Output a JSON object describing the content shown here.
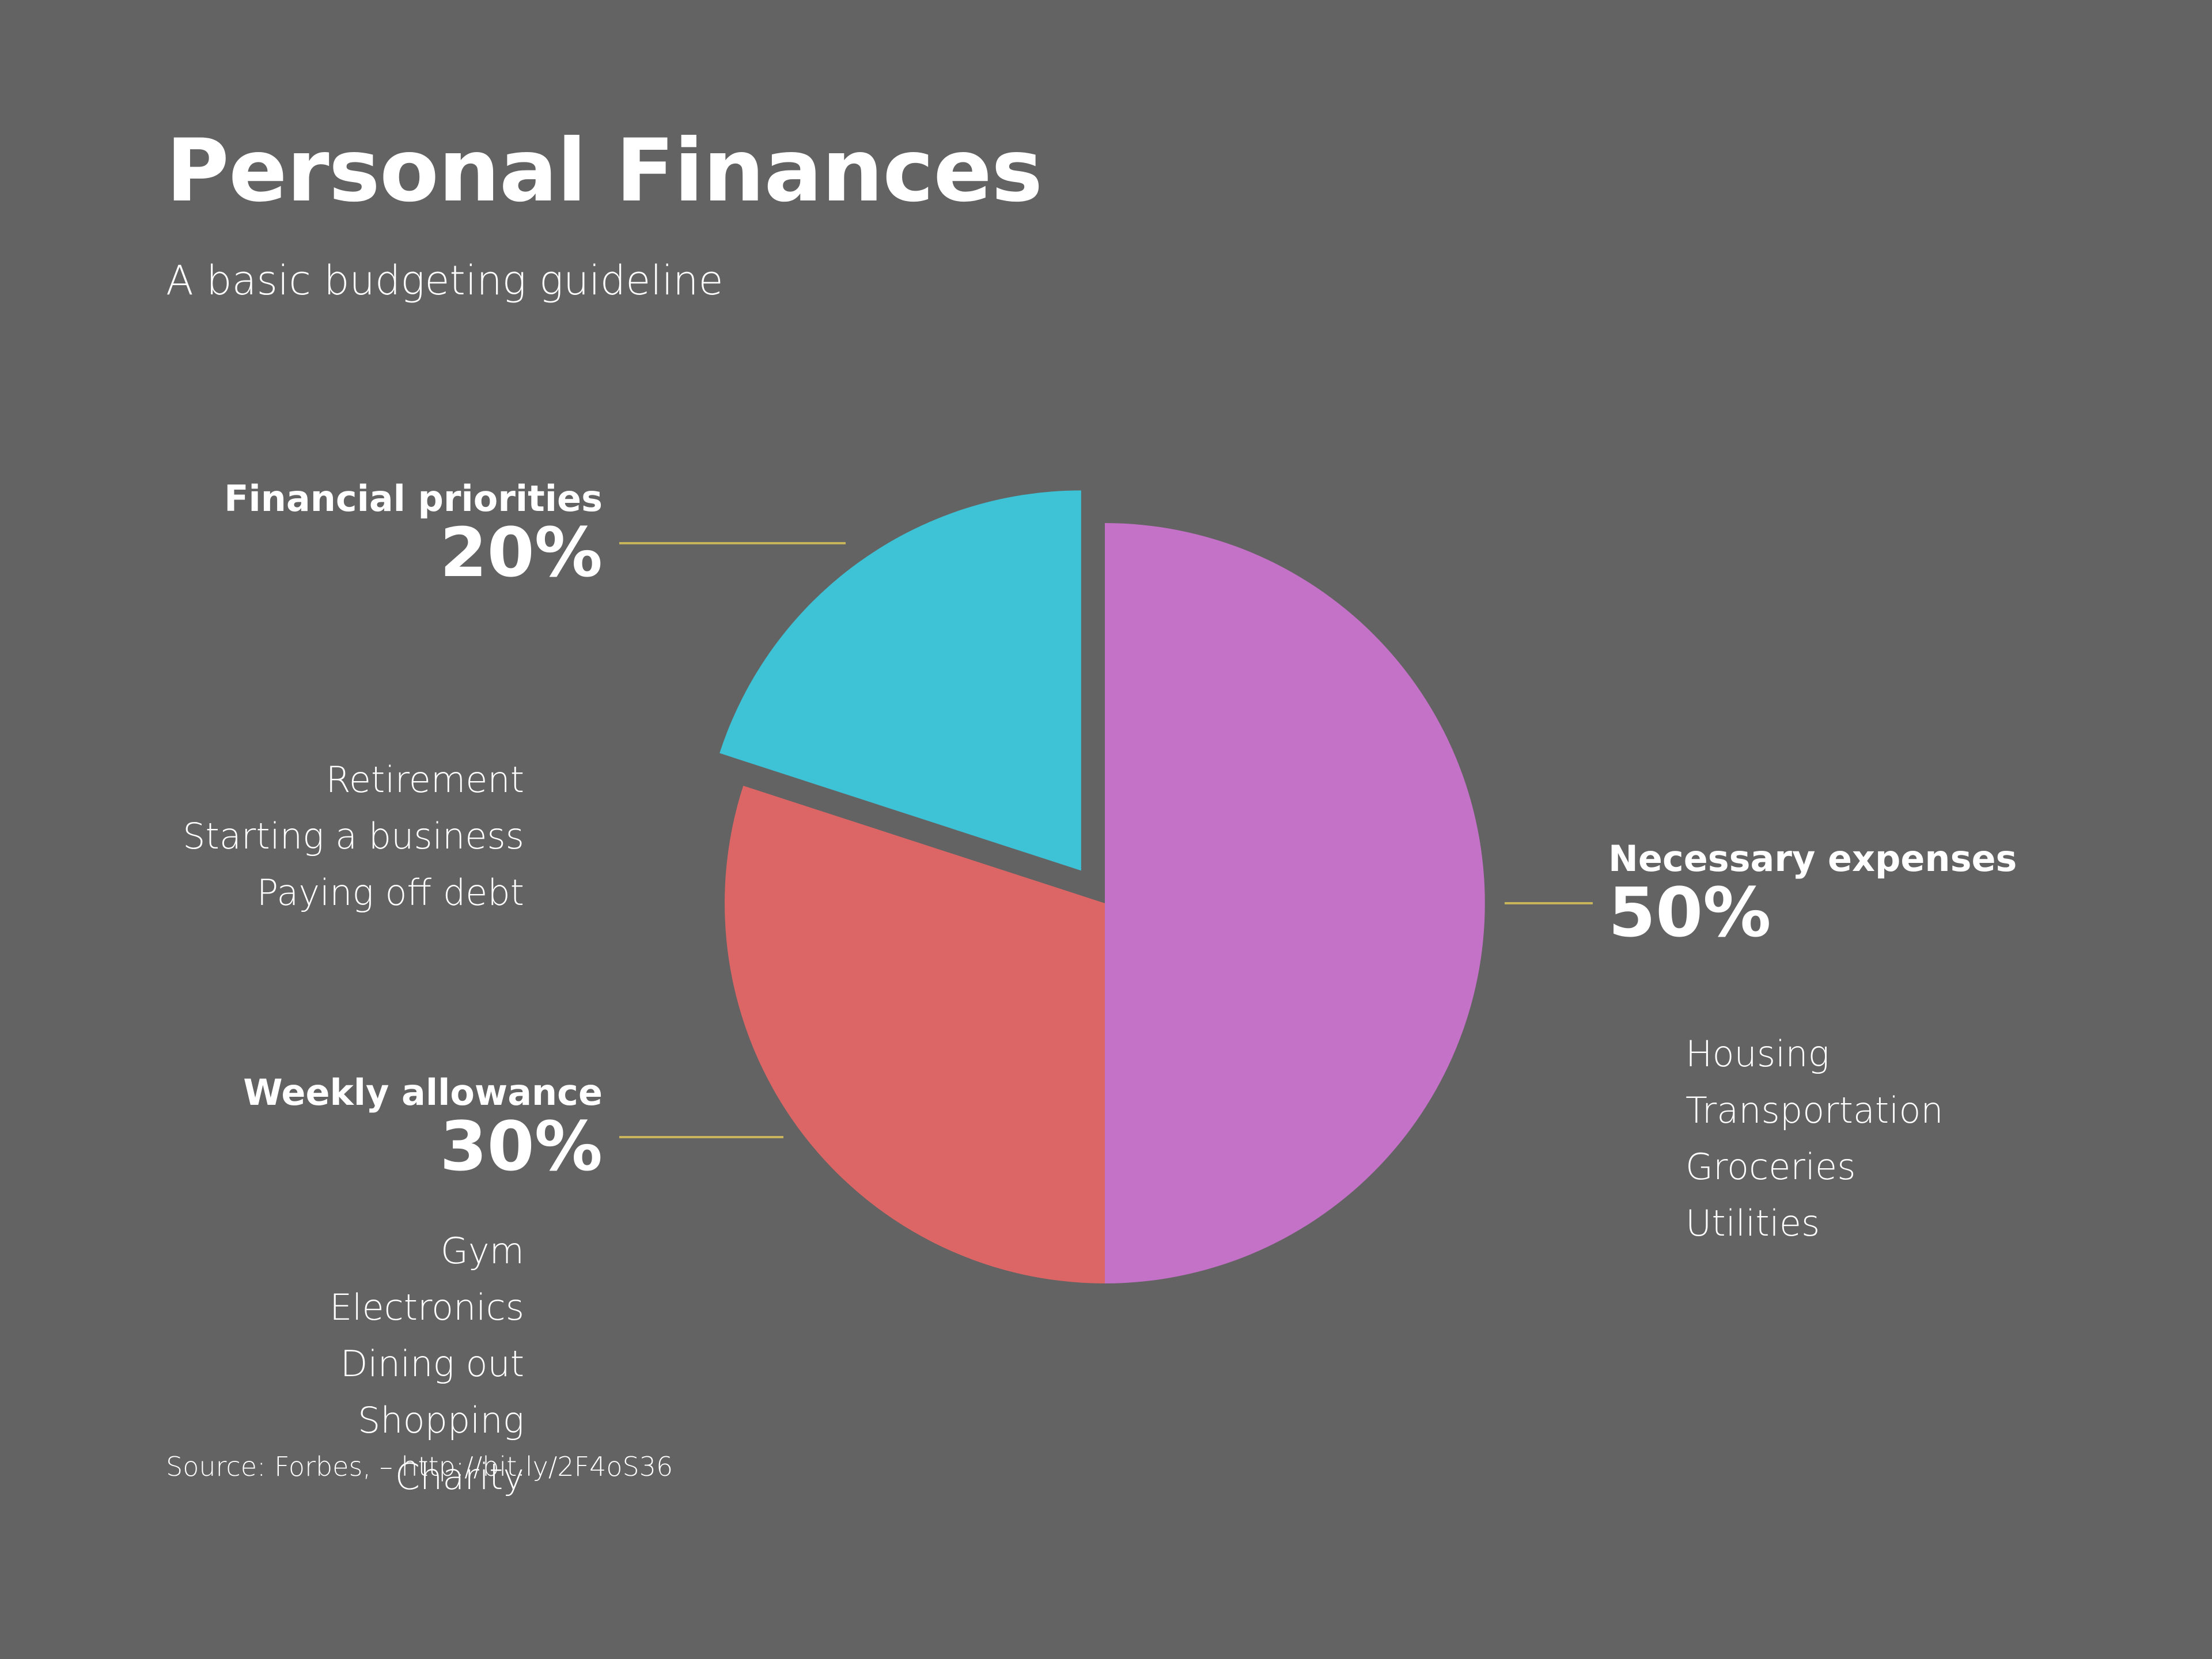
{
  "page": {
    "background": "#636363",
    "leader_color": "#c8b45a"
  },
  "header": {
    "title": "Personal Finances",
    "subtitle": "A basic budgeting guideline"
  },
  "chart_data": {
    "type": "pie",
    "title": "Personal Finances",
    "subtitle": "A basic budgeting guideline",
    "unit": "%",
    "slices": [
      {
        "label": "Necessary expenses",
        "value": 50,
        "pct_label": "50%",
        "color": "#c472c7",
        "exploded": false,
        "items": [
          "Housing",
          "Transportation",
          "Groceries",
          "Utilities"
        ]
      },
      {
        "label": "Weekly allowance",
        "value": 30,
        "pct_label": "30%",
        "color": "#dc6566",
        "exploded": false,
        "items": [
          "Gym",
          "Electronics",
          "Dining out",
          "Shopping",
          "Charity"
        ]
      },
      {
        "label": "Financial priorities",
        "value": 20,
        "pct_label": "20%",
        "color": "#3dc2d6",
        "exploded": true,
        "items": [
          "Retirement",
          "Starting a business",
          "Paying off debt"
        ]
      }
    ],
    "legend": "callouts"
  },
  "footer": {
    "source": "Source: Forbes, – http://bit.ly/2F4oS36"
  }
}
